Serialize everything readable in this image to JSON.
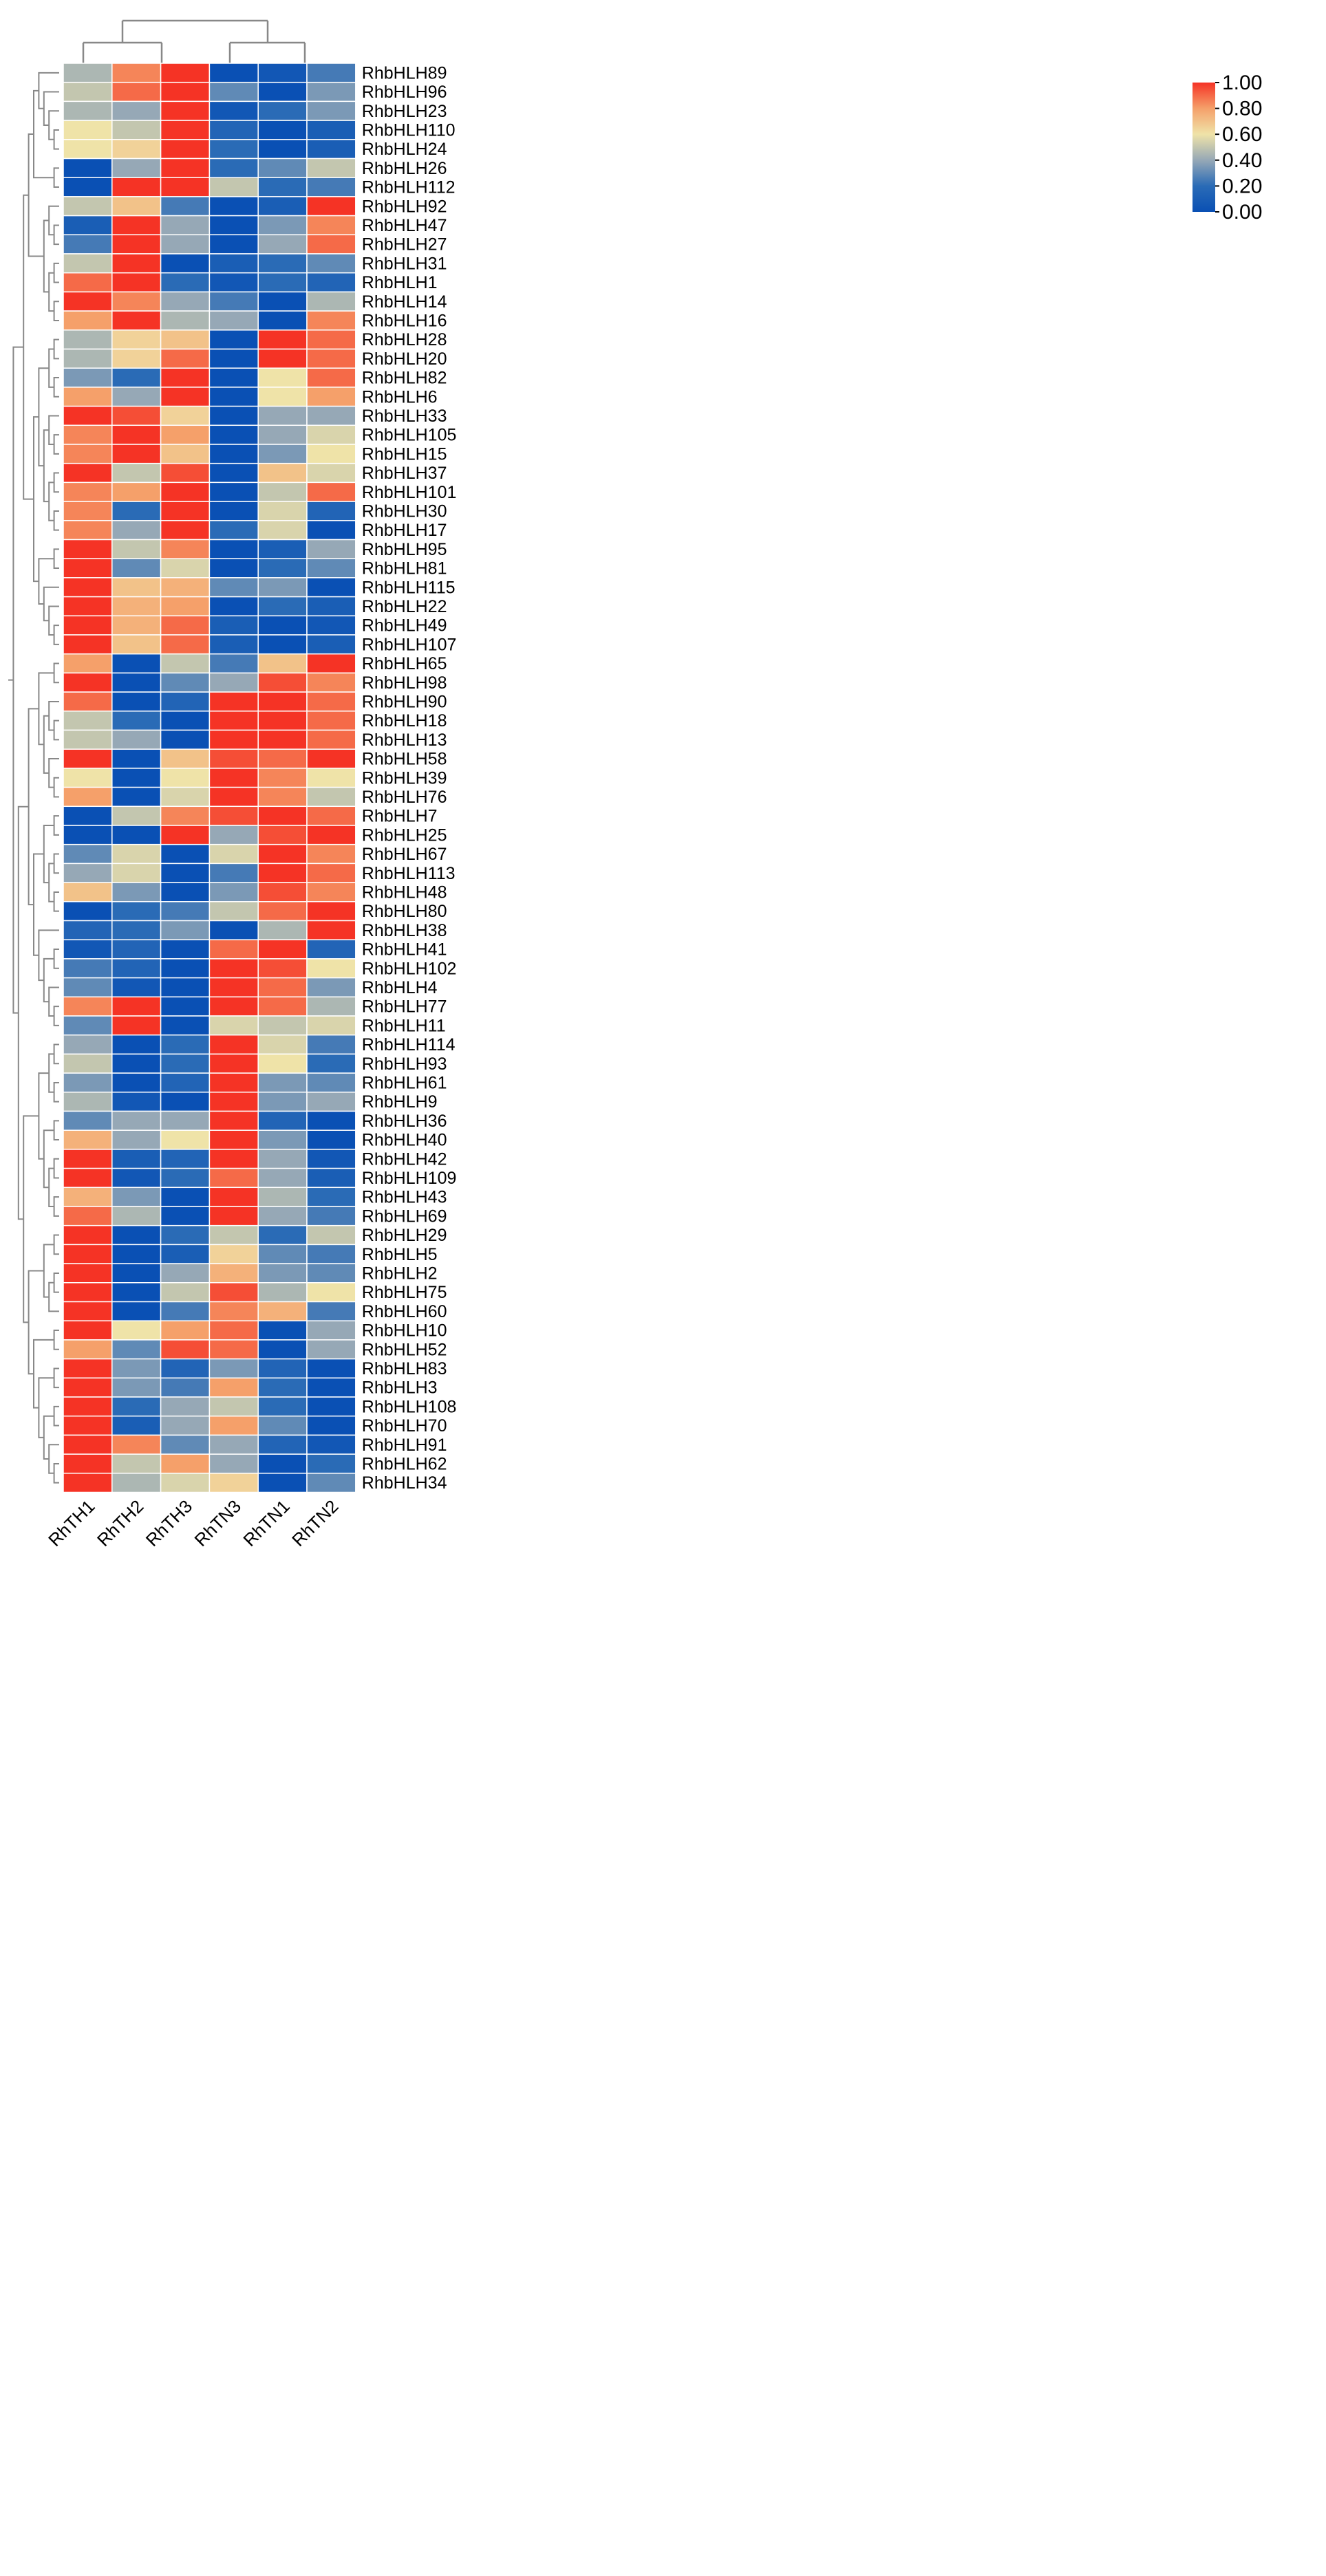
{
  "chart_data": {
    "type": "heatmap",
    "title": "",
    "columns": [
      "RhTH1",
      "RhTH2",
      "RhTH3",
      "RhTN3",
      "RhTN1",
      "RhTN2"
    ],
    "rows": [
      "RhbHLH89",
      "RhbHLH96",
      "RhbHLH23",
      "RhbHLH110",
      "RhbHLH24",
      "RhbHLH26",
      "RhbHLH112",
      "RhbHLH92",
      "RhbHLH47",
      "RhbHLH27",
      "RhbHLH31",
      "RhbHLH1",
      "RhbHLH14",
      "RhbHLH16",
      "RhbHLH28",
      "RhbHLH20",
      "RhbHLH82",
      "RhbHLH6",
      "RhbHLH33",
      "RhbHLH105",
      "RhbHLH15",
      "RhbHLH37",
      "RhbHLH101",
      "RhbHLH30",
      "RhbHLH17",
      "RhbHLH95",
      "RhbHLH81",
      "RhbHLH115",
      "RhbHLH22",
      "RhbHLH49",
      "RhbHLH107",
      "RhbHLH65",
      "RhbHLH98",
      "RhbHLH90",
      "RhbHLH18",
      "RhbHLH13",
      "RhbHLH58",
      "RhbHLH39",
      "RhbHLH76",
      "RhbHLH7",
      "RhbHLH25",
      "RhbHLH67",
      "RhbHLH113",
      "RhbHLH48",
      "RhbHLH80",
      "RhbHLH38",
      "RhbHLH41",
      "RhbHLH102",
      "RhbHLH4",
      "RhbHLH77",
      "RhbHLH11",
      "RhbHLH114",
      "RhbHLH93",
      "RhbHLH61",
      "RhbHLH9",
      "RhbHLH36",
      "RhbHLH40",
      "RhbHLH42",
      "RhbHLH109",
      "RhbHLH43",
      "RhbHLH69",
      "RhbHLH29",
      "RhbHLH5",
      "RhbHLH2",
      "RhbHLH75",
      "RhbHLH60",
      "RhbHLH10",
      "RhbHLH52",
      "RhbHLH83",
      "RhbHLH3",
      "RhbHLH108",
      "RhbHLH70",
      "RhbHLH91",
      "RhbHLH62",
      "RhbHLH34"
    ],
    "values": [
      [
        0.45,
        0.85,
        1.0,
        0.0,
        0.05,
        0.25
      ],
      [
        0.5,
        0.9,
        1.0,
        0.3,
        0.0,
        0.35
      ],
      [
        0.45,
        0.4,
        1.0,
        0.05,
        0.2,
        0.35
      ],
      [
        0.6,
        0.5,
        1.0,
        0.15,
        0.0,
        0.1
      ],
      [
        0.6,
        0.65,
        1.0,
        0.2,
        0.0,
        0.1
      ],
      [
        0.0,
        0.4,
        1.0,
        0.2,
        0.3,
        0.5
      ],
      [
        0.0,
        1.0,
        1.0,
        0.5,
        0.2,
        0.25
      ],
      [
        0.5,
        0.7,
        0.25,
        0.0,
        0.1,
        1.0
      ],
      [
        0.1,
        1.0,
        0.4,
        0.0,
        0.35,
        0.85
      ],
      [
        0.25,
        1.0,
        0.4,
        0.0,
        0.4,
        0.9
      ],
      [
        0.5,
        1.0,
        0.0,
        0.1,
        0.2,
        0.3
      ],
      [
        0.9,
        1.0,
        0.2,
        0.05,
        0.2,
        0.15
      ],
      [
        1.0,
        0.85,
        0.4,
        0.25,
        0.0,
        0.45
      ],
      [
        0.8,
        1.0,
        0.45,
        0.4,
        0.0,
        0.85
      ],
      [
        0.45,
        0.65,
        0.7,
        0.0,
        1.0,
        0.9
      ],
      [
        0.45,
        0.65,
        0.9,
        0.0,
        1.0,
        0.9
      ],
      [
        0.35,
        0.2,
        1.0,
        0.0,
        0.6,
        0.9
      ],
      [
        0.8,
        0.4,
        1.0,
        0.0,
        0.6,
        0.8
      ],
      [
        1.0,
        0.95,
        0.65,
        0.0,
        0.4,
        0.4
      ],
      [
        0.85,
        1.0,
        0.8,
        0.0,
        0.4,
        0.55
      ],
      [
        0.85,
        1.0,
        0.7,
        0.0,
        0.35,
        0.6
      ],
      [
        1.0,
        0.5,
        0.95,
        0.0,
        0.7,
        0.55
      ],
      [
        0.85,
        0.8,
        1.0,
        0.0,
        0.5,
        0.9
      ],
      [
        0.85,
        0.2,
        1.0,
        0.0,
        0.55,
        0.15
      ],
      [
        0.85,
        0.4,
        1.0,
        0.2,
        0.55,
        0.0
      ],
      [
        1.0,
        0.5,
        0.85,
        0.0,
        0.1,
        0.4
      ],
      [
        1.0,
        0.3,
        0.55,
        0.0,
        0.2,
        0.3
      ],
      [
        1.0,
        0.7,
        0.75,
        0.3,
        0.35,
        0.0
      ],
      [
        1.0,
        0.75,
        0.8,
        0.0,
        0.2,
        0.1
      ],
      [
        1.0,
        0.75,
        0.9,
        0.1,
        0.0,
        0.05
      ],
      [
        1.0,
        0.7,
        0.9,
        0.1,
        0.0,
        0.1
      ],
      [
        0.8,
        0.0,
        0.5,
        0.25,
        0.7,
        1.0
      ],
      [
        1.0,
        0.0,
        0.3,
        0.4,
        0.95,
        0.85
      ],
      [
        0.9,
        0.0,
        0.15,
        1.0,
        1.0,
        0.9
      ],
      [
        0.5,
        0.2,
        0.0,
        1.0,
        1.0,
        0.9
      ],
      [
        0.5,
        0.4,
        0.0,
        1.0,
        1.0,
        0.9
      ],
      [
        1.0,
        0.0,
        0.7,
        0.95,
        0.9,
        1.0
      ],
      [
        0.6,
        0.0,
        0.6,
        1.0,
        0.85,
        0.6
      ],
      [
        0.8,
        0.0,
        0.55,
        1.0,
        0.85,
        0.5
      ],
      [
        0.0,
        0.5,
        0.85,
        0.95,
        1.0,
        0.9
      ],
      [
        0.0,
        0.0,
        1.0,
        0.4,
        0.95,
        1.0
      ],
      [
        0.3,
        0.55,
        0.0,
        0.55,
        1.0,
        0.85
      ],
      [
        0.4,
        0.55,
        0.0,
        0.25,
        1.0,
        0.9
      ],
      [
        0.7,
        0.35,
        0.0,
        0.35,
        0.95,
        0.85
      ],
      [
        0.0,
        0.2,
        0.25,
        0.5,
        0.9,
        1.0
      ],
      [
        0.15,
        0.2,
        0.35,
        0.0,
        0.45,
        1.0
      ],
      [
        0.05,
        0.15,
        0.0,
        0.9,
        1.0,
        0.15
      ],
      [
        0.25,
        0.15,
        0.0,
        1.0,
        0.95,
        0.6
      ],
      [
        0.3,
        0.05,
        0.0,
        1.0,
        0.9,
        0.35
      ],
      [
        0.85,
        1.0,
        0.0,
        1.0,
        0.9,
        0.45
      ],
      [
        0.3,
        1.0,
        0.0,
        0.55,
        0.5,
        0.55
      ],
      [
        0.4,
        0.0,
        0.2,
        1.0,
        0.55,
        0.25
      ],
      [
        0.5,
        0.0,
        0.2,
        1.0,
        0.6,
        0.2
      ],
      [
        0.35,
        0.0,
        0.15,
        1.0,
        0.35,
        0.3
      ],
      [
        0.45,
        0.05,
        0.0,
        1.0,
        0.35,
        0.4
      ],
      [
        0.3,
        0.4,
        0.4,
        1.0,
        0.15,
        0.0
      ],
      [
        0.75,
        0.4,
        0.6,
        1.0,
        0.35,
        0.0
      ],
      [
        1.0,
        0.1,
        0.15,
        1.0,
        0.4,
        0.05
      ],
      [
        1.0,
        0.05,
        0.2,
        0.9,
        0.4,
        0.1
      ],
      [
        0.75,
        0.35,
        0.0,
        1.0,
        0.45,
        0.2
      ],
      [
        0.9,
        0.45,
        0.0,
        1.0,
        0.4,
        0.25
      ],
      [
        1.0,
        0.0,
        0.2,
        0.5,
        0.2,
        0.5
      ],
      [
        1.0,
        0.0,
        0.1,
        0.65,
        0.3,
        0.25
      ],
      [
        1.0,
        0.0,
        0.4,
        0.75,
        0.35,
        0.3
      ],
      [
        1.0,
        0.0,
        0.5,
        0.95,
        0.45,
        0.6
      ],
      [
        1.0,
        0.0,
        0.25,
        0.85,
        0.75,
        0.25
      ],
      [
        1.0,
        0.6,
        0.8,
        0.9,
        0.0,
        0.4
      ],
      [
        0.8,
        0.3,
        0.95,
        0.9,
        0.0,
        0.4
      ],
      [
        1.0,
        0.35,
        0.15,
        0.35,
        0.15,
        0.0
      ],
      [
        1.0,
        0.35,
        0.25,
        0.8,
        0.2,
        0.0
      ],
      [
        1.0,
        0.2,
        0.4,
        0.5,
        0.2,
        0.0
      ],
      [
        1.0,
        0.1,
        0.4,
        0.8,
        0.3,
        0.0
      ],
      [
        1.0,
        0.85,
        0.3,
        0.4,
        0.15,
        0.05
      ],
      [
        1.0,
        0.5,
        0.8,
        0.4,
        0.0,
        0.2
      ],
      [
        1.0,
        0.45,
        0.55,
        0.65,
        0.0,
        0.3
      ]
    ],
    "colorbar": {
      "min": 0.0,
      "max": 1.0,
      "ticks": [
        "1.00",
        "0.80",
        "0.60",
        "0.40",
        "0.20",
        "0.00"
      ],
      "colors": [
        "#0a50b4",
        "#2a6bb6",
        "#96a8b6",
        "#efe3a8",
        "#f5a06a",
        "#f53325"
      ]
    },
    "xlabel": "",
    "ylabel": "",
    "legend_position": "top-right"
  }
}
